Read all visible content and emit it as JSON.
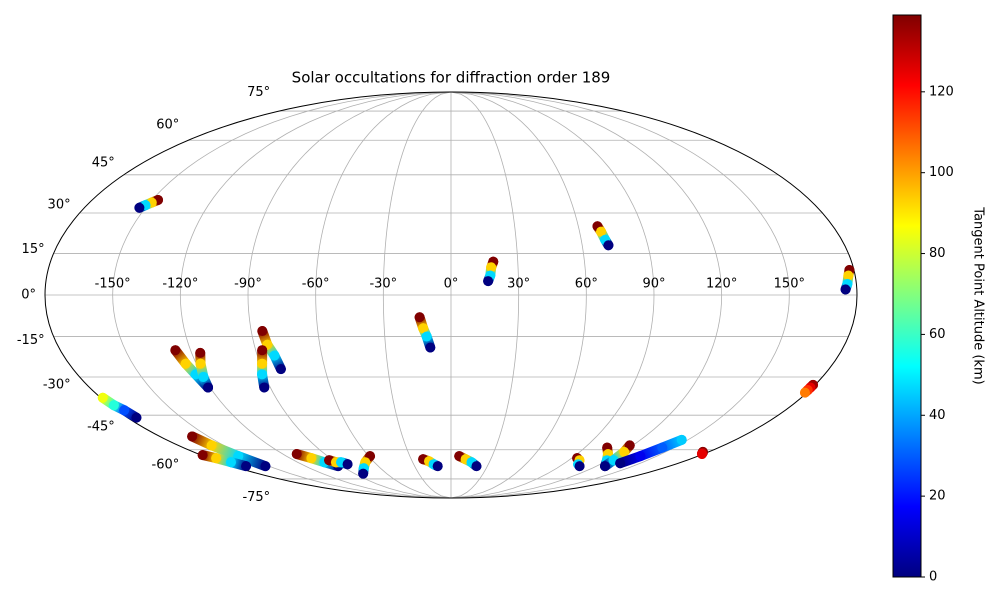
{
  "chart_data": {
    "type": "scatter",
    "projection": "mollweide",
    "colormap": "jet",
    "grid": true,
    "title": "Solar occultations for diffraction order 189",
    "colorbar_label": "Tangent Point Altitude (km)",
    "clim": [
      0,
      139
    ],
    "cticks": [
      0,
      20,
      40,
      60,
      80,
      100,
      120
    ],
    "xlim": [
      -180,
      180
    ],
    "ylim": [
      -90,
      90
    ],
    "xticks": [
      {
        "value": -150,
        "label": "-150°"
      },
      {
        "value": -120,
        "label": "-120°"
      },
      {
        "value": -90,
        "label": "-90°"
      },
      {
        "value": -60,
        "label": "-60°"
      },
      {
        "value": -30,
        "label": "-30°"
      },
      {
        "value": 0,
        "label": "0°"
      },
      {
        "value": 30,
        "label": "30°"
      },
      {
        "value": 60,
        "label": "60°"
      },
      {
        "value": 90,
        "label": "90°"
      },
      {
        "value": 120,
        "label": "120°"
      },
      {
        "value": 150,
        "label": "150°"
      }
    ],
    "yticks": [
      {
        "value": -75,
        "label": "-75°"
      },
      {
        "value": -60,
        "label": "-60°"
      },
      {
        "value": -45,
        "label": "-45°"
      },
      {
        "value": -30,
        "label": "-30°"
      },
      {
        "value": -15,
        "label": "-15°"
      },
      {
        "value": 0,
        "label": "0°"
      },
      {
        "value": 15,
        "label": "15°"
      },
      {
        "value": 30,
        "label": "30°"
      },
      {
        "value": 45,
        "label": "45°"
      },
      {
        "value": 60,
        "label": "60°"
      },
      {
        "value": 75,
        "label": "75°"
      }
    ],
    "tracks": [
      {
        "lon": [
          -147,
          -149,
          -151,
          -153
        ],
        "lat": [
          35,
          34,
          33,
          32
        ],
        "altitude": [
          140,
          93,
          47,
          0
        ]
      },
      {
        "lon": [
          19,
          18,
          17.5,
          16.5
        ],
        "lat": [
          12,
          10,
          7,
          5
        ],
        "altitude": [
          140,
          93,
          47,
          0
        ]
      },
      {
        "lon": [
          69,
          70,
          71,
          72
        ],
        "lat": [
          25,
          23,
          20,
          18
        ],
        "altitude": [
          140,
          93,
          47,
          0
        ]
      },
      {
        "lon": [
          178,
          177,
          176,
          175
        ],
        "lat": [
          9,
          7,
          4,
          2
        ],
        "altitude": [
          140,
          93,
          47,
          0
        ]
      },
      {
        "lon": [
          -14,
          -12.5,
          -11,
          -9.5
        ],
        "lat": [
          -8,
          -12,
          -15,
          -19
        ],
        "altitude": [
          140,
          93,
          47,
          0
        ]
      },
      {
        "lon": [
          -85,
          -84,
          -82,
          -81
        ],
        "lat": [
          -13,
          -18,
          -22,
          -27
        ],
        "altitude": [
          140,
          93,
          47,
          0
        ]
      },
      {
        "lon": [
          -87,
          -89,
          -91,
          -93
        ],
        "lat": [
          -20,
          -25,
          -29,
          -34
        ],
        "altitude": [
          140,
          93,
          47,
          0
        ]
      },
      {
        "lon": [
          -127,
          -125,
          -123,
          -121
        ],
        "lat": [
          -20,
          -25,
          -29,
          -34
        ],
        "altitude": [
          140,
          93,
          47,
          0
        ]
      },
      {
        "lon": [
          -116,
          -118,
          -120,
          -121
        ],
        "lat": [
          -21,
          -25,
          -30,
          -34
        ],
        "altitude": [
          140,
          93,
          47,
          0
        ]
      },
      {
        "lon": [
          -179,
          -178,
          -176,
          -175
        ],
        "lat": [
          -38,
          -41,
          -43,
          -46
        ],
        "altitude": [
          85,
          57,
          28,
          0
        ]
      },
      {
        "lon": [
          179,
          179,
          179,
          179
        ],
        "lat": [
          -33,
          -34,
          -35,
          -36
        ],
        "altitude": [
          135,
          125,
          115,
          105
        ]
      },
      {
        "lon": [
          -160,
          -158,
          -155,
          -153
        ],
        "lat": [
          -54,
          -58,
          -63,
          -68
        ],
        "altitude": [
          140,
          93,
          47,
          0
        ]
      },
      {
        "lon": [
          -179,
          -175,
          -172,
          -169
        ],
        "lat": [
          -62.5,
          -64,
          -66,
          -68
        ],
        "altitude": [
          140,
          93,
          47,
          0
        ]
      },
      {
        "lon": [
          -110,
          -104,
          -99,
          -93
        ],
        "lat": [
          -62,
          -64,
          -66,
          -68
        ],
        "altitude": [
          140,
          93,
          47,
          0
        ]
      },
      {
        "lon": [
          -93,
          -90,
          -86,
          -83
        ],
        "lat": [
          -65,
          -66,
          -66,
          -67
        ],
        "altitude": [
          140,
          93,
          47,
          0
        ]
      },
      {
        "lon": [
          -59,
          -67,
          -74,
          -82
        ],
        "lat": [
          -63,
          -66,
          -69,
          -72
        ],
        "altitude": [
          140,
          93,
          47,
          0
        ]
      },
      {
        "lon": [
          -21,
          -17,
          -14,
          -11
        ],
        "lat": [
          -64.5,
          -65.5,
          -67,
          -68
        ],
        "altitude": [
          140,
          93,
          47,
          0
        ]
      },
      {
        "lon": [
          6,
          11,
          16,
          21
        ],
        "lat": [
          -63,
          -64.5,
          -66,
          -68
        ],
        "altitude": [
          140,
          93,
          47,
          0
        ]
      },
      {
        "lon": [
          94,
          98,
          102,
          106
        ],
        "lat": [
          -64,
          -65,
          -67,
          -68
        ],
        "altitude": [
          140,
          93,
          47,
          0
        ]
      },
      {
        "lon": [
          105,
          112,
          119,
          127
        ],
        "lat": [
          -59,
          -62,
          -65,
          -68
        ],
        "altitude": [
          140,
          93,
          47,
          0
        ]
      },
      {
        "lon": [
          118,
          121,
          124,
          127
        ],
        "lat": [
          -58,
          -61,
          -65,
          -68
        ],
        "altitude": [
          140,
          93,
          47,
          0
        ]
      },
      {
        "lon": [
          146,
          142,
          138,
          134
        ],
        "lat": [
          -55.5,
          -59,
          -63,
          -66.5
        ],
        "altitude": [
          45,
          30,
          15,
          0
        ]
      },
      {
        "lon": [
          176,
          177,
          178,
          179
        ],
        "lat": [
          -61,
          -61.3,
          -61.7,
          -62
        ],
        "altitude": [
          140,
          135,
          130,
          125
        ]
      }
    ]
  }
}
